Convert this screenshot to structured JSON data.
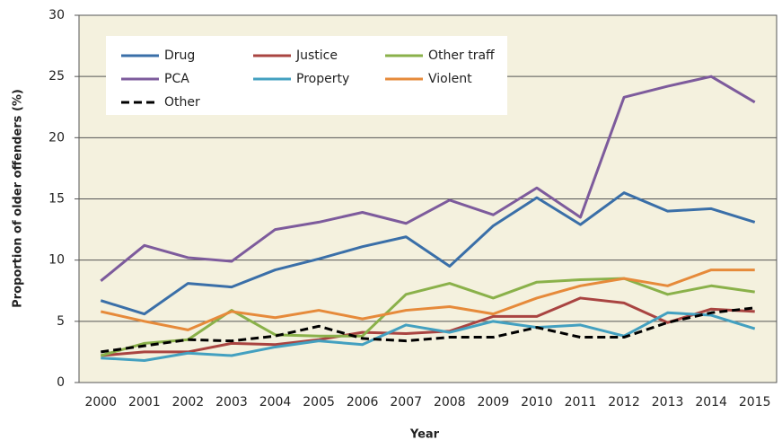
{
  "chart_data": {
    "type": "line",
    "x_label": "Year",
    "y_label": "Proportion of older offenders (%)",
    "categories": [
      "2000",
      "2001",
      "2002",
      "2003",
      "2004",
      "2005",
      "2006",
      "2007",
      "2008",
      "2009",
      "2010",
      "2011",
      "2012",
      "2013",
      "2014",
      "2015"
    ],
    "ylim": [
      0,
      30
    ],
    "yticks": [
      0,
      5,
      10,
      15,
      20,
      25,
      30
    ],
    "grid": true,
    "legend": "upper left",
    "series": [
      {
        "name": "Drug",
        "color": "#3a6fa8",
        "values": [
          6.7,
          5.6,
          8.1,
          7.8,
          9.2,
          10.1,
          11.1,
          11.9,
          9.5,
          12.8,
          15.1,
          12.9,
          15.5,
          14.0,
          14.2,
          13.1
        ]
      },
      {
        "name": "Justice",
        "color": "#a94441",
        "values": [
          2.2,
          2.5,
          2.5,
          3.2,
          3.1,
          3.5,
          4.1,
          4.0,
          4.2,
          5.4,
          5.4,
          6.9,
          6.5,
          4.9,
          6.0,
          5.8
        ]
      },
      {
        "name": "Other traff",
        "color": "#8ab14a",
        "values": [
          2.2,
          3.2,
          3.5,
          5.9,
          3.9,
          3.8,
          3.8,
          7.2,
          8.1,
          6.9,
          8.2,
          8.4,
          8.5,
          7.2,
          7.9,
          7.4
        ]
      },
      {
        "name": "PCA",
        "color": "#7d5b9c",
        "values": [
          8.3,
          11.2,
          10.2,
          9.9,
          12.5,
          13.1,
          13.9,
          13.0,
          14.9,
          13.7,
          15.9,
          13.5,
          23.3,
          24.2,
          25.0,
          22.9
        ]
      },
      {
        "name": "Property",
        "color": "#43a0c0",
        "values": [
          2.0,
          1.8,
          2.4,
          2.2,
          2.9,
          3.4,
          3.1,
          4.7,
          4.1,
          5.0,
          4.5,
          4.7,
          3.8,
          5.7,
          5.5,
          4.4
        ]
      },
      {
        "name": "Violent",
        "color": "#e68a3a",
        "values": [
          5.8,
          5.0,
          4.3,
          5.8,
          5.3,
          5.9,
          5.2,
          5.9,
          6.2,
          5.6,
          6.9,
          7.9,
          8.5,
          7.9,
          9.2,
          9.2
        ]
      },
      {
        "name": "Other",
        "color": "#000000",
        "dash": true,
        "values": [
          2.5,
          3.0,
          3.5,
          3.4,
          3.8,
          4.6,
          3.6,
          3.4,
          3.7,
          3.7,
          4.5,
          3.7,
          3.7,
          4.9,
          5.7,
          6.1
        ]
      }
    ]
  }
}
